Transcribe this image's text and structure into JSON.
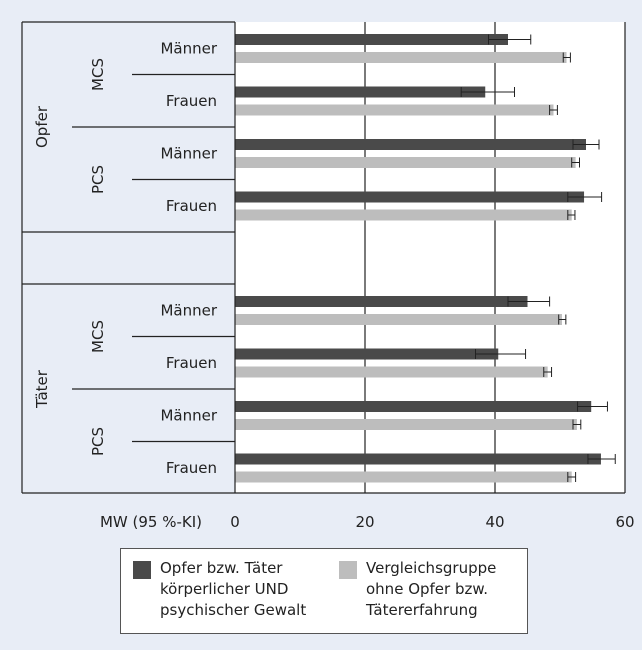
{
  "chart_data": {
    "type": "bar",
    "orientation": "horizontal",
    "xlabel": "MW (95 %-KI)",
    "xlim": [
      0,
      60
    ],
    "xticks": [
      0,
      20,
      40,
      60
    ],
    "grid": true,
    "groups": [
      {
        "label": "Opfer",
        "subgroups": [
          {
            "label": "MCS",
            "rows": [
              {
                "label": "Männer",
                "series1": {
                  "value": 42,
                  "ci": [
                    39,
                    45.5
                  ]
                },
                "series2": {
                  "value": 51,
                  "ci": [
                    50.5,
                    51.6
                  ]
                }
              },
              {
                "label": "Frauen",
                "series1": {
                  "value": 38.5,
                  "ci": [
                    34.8,
                    43
                  ]
                },
                "series2": {
                  "value": 49,
                  "ci": [
                    48.4,
                    49.6
                  ]
                }
              }
            ]
          },
          {
            "label": "PCS",
            "rows": [
              {
                "label": "Männer",
                "series1": {
                  "value": 54,
                  "ci": [
                    52,
                    56
                  ]
                },
                "series2": {
                  "value": 52.4,
                  "ci": [
                    51.8,
                    53
                  ]
                }
              },
              {
                "label": "Frauen",
                "series1": {
                  "value": 53.7,
                  "ci": [
                    51.2,
                    56.4
                  ]
                },
                "series2": {
                  "value": 51.8,
                  "ci": [
                    51.2,
                    52.3
                  ]
                }
              }
            ]
          }
        ]
      },
      {
        "label": "Täter",
        "subgroups": [
          {
            "label": "MCS",
            "rows": [
              {
                "label": "Männer",
                "series1": {
                  "value": 45,
                  "ci": [
                    42,
                    48.4
                  ]
                },
                "series2": {
                  "value": 50.3,
                  "ci": [
                    49.8,
                    50.9
                  ]
                }
              },
              {
                "label": "Frauen",
                "series1": {
                  "value": 40.5,
                  "ci": [
                    37,
                    44.7
                  ]
                },
                "series2": {
                  "value": 48.1,
                  "ci": [
                    47.5,
                    48.7
                  ]
                }
              }
            ]
          },
          {
            "label": "PCS",
            "rows": [
              {
                "label": "Männer",
                "series1": {
                  "value": 54.8,
                  "ci": [
                    52.7,
                    57.3
                  ]
                },
                "series2": {
                  "value": 52.6,
                  "ci": [
                    52,
                    53.2
                  ]
                }
              },
              {
                "label": "Frauen",
                "series1": {
                  "value": 56.3,
                  "ci": [
                    54.3,
                    58.5
                  ]
                },
                "series2": {
                  "value": 51.8,
                  "ci": [
                    51.2,
                    52.4
                  ]
                }
              }
            ]
          }
        ]
      }
    ],
    "series": [
      {
        "name": "Opfer bzw. Täter\nkörperlicher UND\npsychischer Gewalt",
        "color": "#4a4a4a"
      },
      {
        "name": "Vergleichsgruppe\nohne Opfer bzw.\nTätererfahrung",
        "color": "#bdbdbd"
      }
    ],
    "legend_position": "bottom"
  }
}
